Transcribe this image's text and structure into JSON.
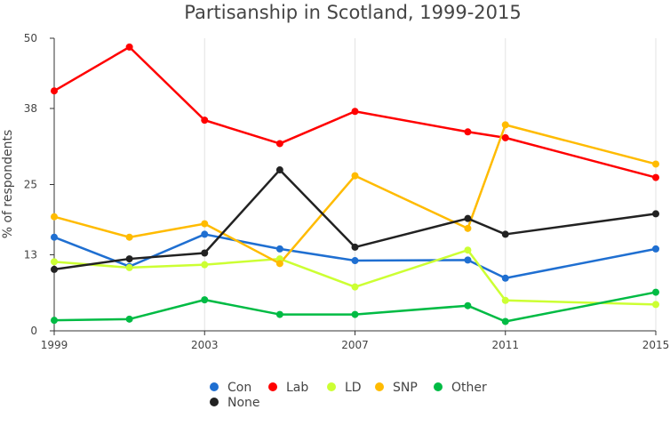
{
  "chart_data": {
    "type": "line",
    "title": "Partisanship in Scotland, 1999-2015",
    "xlabel": "",
    "ylabel": "% of respondents",
    "xlim": [
      1999,
      2015
    ],
    "ylim": [
      0,
      50
    ],
    "y_ticks": [
      0,
      13,
      25,
      38,
      50
    ],
    "x_ticks": [
      1999,
      2003,
      2007,
      2011,
      2015
    ],
    "x": [
      1999,
      2001,
      2003,
      2005,
      2007,
      2010,
      2011,
      2015
    ],
    "grid": "vertical",
    "legend_position": "bottom",
    "series": [
      {
        "name": "Con",
        "color": "#1f6fd1",
        "values": [
          16,
          11,
          16.5,
          14,
          12,
          12.1,
          9,
          14
        ]
      },
      {
        "name": "Lab",
        "color": "#ff0000",
        "values": [
          41,
          48.5,
          36,
          32,
          37.5,
          34,
          33,
          26.2
        ]
      },
      {
        "name": "LD",
        "color": "#ccff33",
        "values": [
          11.8,
          10.8,
          11.3,
          12.3,
          7.5,
          13.8,
          5.2,
          4.5
        ]
      },
      {
        "name": "SNP",
        "color": "#ffbb00",
        "values": [
          19.5,
          16,
          18.3,
          11.5,
          26.5,
          17.5,
          35.2,
          28.5
        ]
      },
      {
        "name": "Other",
        "color": "#00bb44",
        "values": [
          1.8,
          2,
          5.3,
          2.8,
          2.8,
          4.3,
          1.6,
          6.6
        ]
      },
      {
        "name": "None",
        "color": "#222222",
        "values": [
          10.5,
          12.3,
          13.3,
          27.5,
          14.3,
          19.2,
          16.5,
          20
        ]
      }
    ]
  }
}
